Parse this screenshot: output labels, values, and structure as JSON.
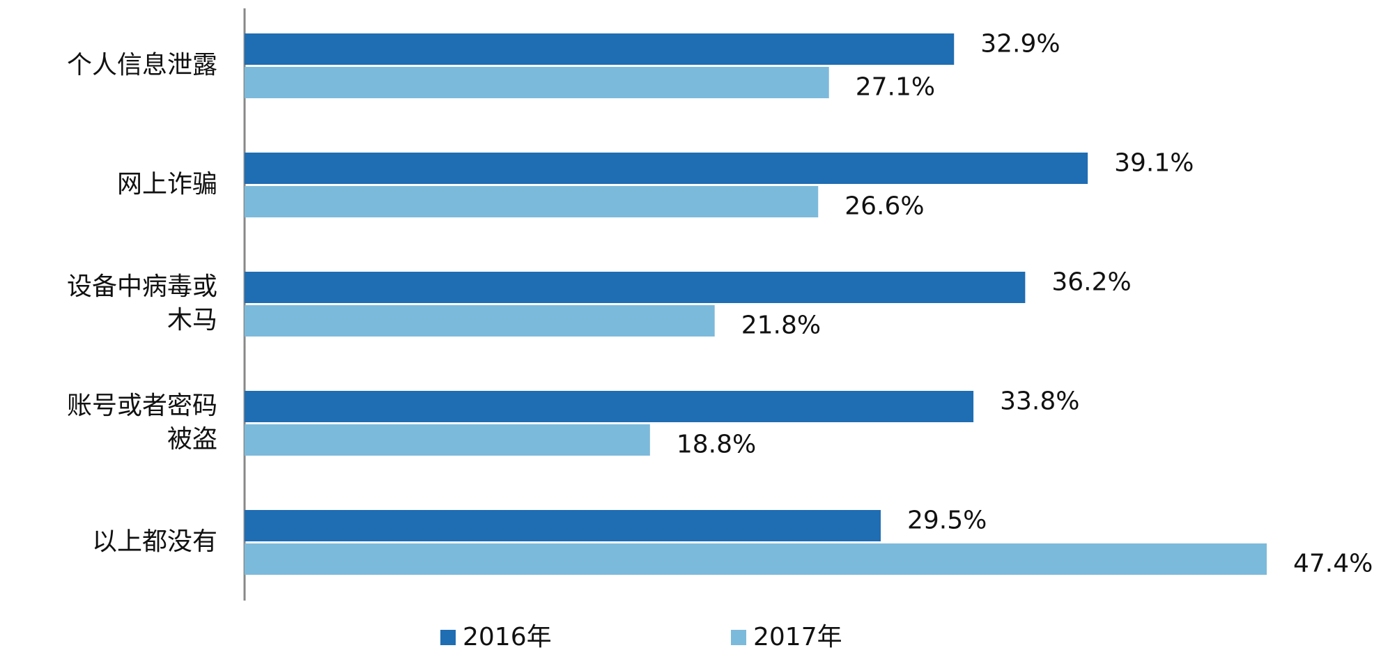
{
  "chart_data": {
    "type": "hbar",
    "categories": [
      "个人信息泄露",
      "网上诈骗",
      "设备中病毒或木马",
      "账号或者密码被盗",
      "以上都没有"
    ],
    "series": [
      {
        "name": "2016年",
        "color": "#1f6db3",
        "values": [
          32.9,
          39.1,
          36.2,
          33.8,
          29.5
        ],
        "value_labels": [
          "32.9%",
          "39.1%",
          "36.2%",
          "33.8%",
          "29.5%"
        ]
      },
      {
        "name": "2017年",
        "color": "#7cbadb",
        "values": [
          27.1,
          26.6,
          21.8,
          18.8,
          47.4
        ],
        "value_labels": [
          "27.1%",
          "26.6%",
          "21.8%",
          "18.8%",
          "47.4%"
        ]
      }
    ]
  }
}
